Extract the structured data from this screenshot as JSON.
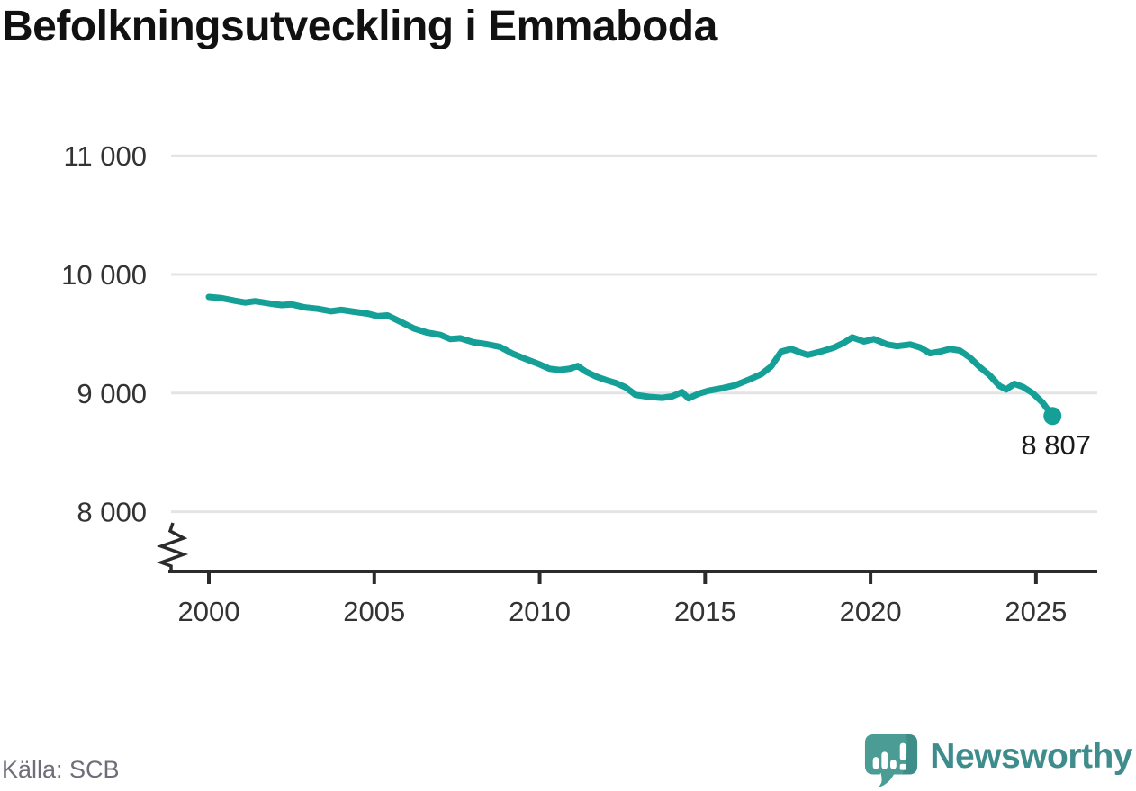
{
  "page": {
    "title": "Befolkningsutveckling i Emmaboda"
  },
  "chart_data": {
    "type": "line",
    "title": "Befolkningsutveckling i Emmaboda",
    "xlabel": "",
    "ylabel": "",
    "grid": true,
    "axis_break": true,
    "x_range": [
      2000,
      2025.5
    ],
    "y_range_shown": [
      8000,
      11000
    ],
    "yticks": [
      {
        "value": 11000,
        "label": "11 000"
      },
      {
        "value": 10000,
        "label": "10 000"
      },
      {
        "value": 9000,
        "label": "9 000"
      },
      {
        "value": 8000,
        "label": "8 000"
      }
    ],
    "xticks": [
      {
        "value": 2000,
        "label": "2000"
      },
      {
        "value": 2005,
        "label": "2005"
      },
      {
        "value": 2010,
        "label": "2010"
      },
      {
        "value": 2015,
        "label": "2015"
      },
      {
        "value": 2020,
        "label": "2020"
      },
      {
        "value": 2025,
        "label": "2025"
      }
    ],
    "series": [
      {
        "color": "#14A096",
        "points": [
          [
            2000.0,
            9810
          ],
          [
            2000.4,
            9800
          ],
          [
            2000.8,
            9778
          ],
          [
            2001.1,
            9763
          ],
          [
            2001.4,
            9775
          ],
          [
            2001.9,
            9753
          ],
          [
            2002.2,
            9742
          ],
          [
            2002.5,
            9748
          ],
          [
            2002.9,
            9722
          ],
          [
            2003.3,
            9710
          ],
          [
            2003.7,
            9690
          ],
          [
            2004.0,
            9702
          ],
          [
            2004.4,
            9685
          ],
          [
            2004.8,
            9670
          ],
          [
            2005.1,
            9648
          ],
          [
            2005.4,
            9655
          ],
          [
            2005.8,
            9600
          ],
          [
            2006.2,
            9545
          ],
          [
            2006.6,
            9510
          ],
          [
            2007.0,
            9490
          ],
          [
            2007.3,
            9455
          ],
          [
            2007.6,
            9462
          ],
          [
            2008.0,
            9428
          ],
          [
            2008.4,
            9412
          ],
          [
            2008.8,
            9390
          ],
          [
            2009.2,
            9330
          ],
          [
            2009.6,
            9285
          ],
          [
            2010.0,
            9242
          ],
          [
            2010.3,
            9205
          ],
          [
            2010.6,
            9195
          ],
          [
            2010.9,
            9205
          ],
          [
            2011.15,
            9228
          ],
          [
            2011.4,
            9180
          ],
          [
            2011.7,
            9140
          ],
          [
            2012.0,
            9110
          ],
          [
            2012.3,
            9085
          ],
          [
            2012.6,
            9048
          ],
          [
            2012.9,
            8985
          ],
          [
            2013.3,
            8968
          ],
          [
            2013.7,
            8960
          ],
          [
            2014.0,
            8972
          ],
          [
            2014.3,
            9008
          ],
          [
            2014.5,
            8955
          ],
          [
            2014.8,
            8995
          ],
          [
            2015.1,
            9020
          ],
          [
            2015.5,
            9040
          ],
          [
            2015.9,
            9065
          ],
          [
            2016.3,
            9110
          ],
          [
            2016.7,
            9160
          ],
          [
            2017.0,
            9225
          ],
          [
            2017.3,
            9350
          ],
          [
            2017.6,
            9372
          ],
          [
            2017.9,
            9340
          ],
          [
            2018.1,
            9322
          ],
          [
            2018.5,
            9350
          ],
          [
            2018.9,
            9385
          ],
          [
            2019.2,
            9425
          ],
          [
            2019.45,
            9470
          ],
          [
            2019.8,
            9435
          ],
          [
            2020.1,
            9455
          ],
          [
            2020.5,
            9410
          ],
          [
            2020.8,
            9395
          ],
          [
            2021.2,
            9410
          ],
          [
            2021.5,
            9385
          ],
          [
            2021.8,
            9335
          ],
          [
            2022.1,
            9350
          ],
          [
            2022.4,
            9372
          ],
          [
            2022.7,
            9358
          ],
          [
            2023.0,
            9300
          ],
          [
            2023.3,
            9220
          ],
          [
            2023.6,
            9150
          ],
          [
            2023.9,
            9060
          ],
          [
            2024.1,
            9030
          ],
          [
            2024.35,
            9078
          ],
          [
            2024.6,
            9052
          ],
          [
            2024.9,
            9000
          ],
          [
            2025.2,
            8920
          ],
          [
            2025.5,
            8807
          ]
        ]
      }
    ],
    "end_annotation": {
      "label": "8 807",
      "value": 8807
    }
  },
  "footer": {
    "source": "Källa: SCB",
    "logo_text": "Newsworthy"
  },
  "colors": {
    "line": "#14A096",
    "grid": "#E4E4E4",
    "axis": "#2B2B2B",
    "tick_text": "#333333",
    "end_label_text": "#1A1A1A",
    "source_text": "#6E6E78",
    "logo_text": "#3E8C8C",
    "logo_bubble": "#4A9C95",
    "logo_bubble_dark": "#3F8D88"
  }
}
